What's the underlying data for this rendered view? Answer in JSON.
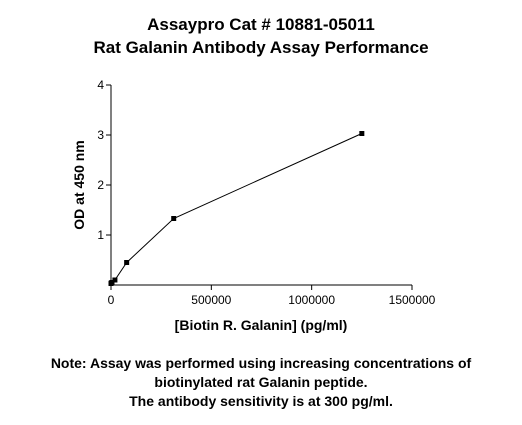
{
  "chart_data": {
    "type": "line",
    "title": [
      "Assaypro Cat # 10881-05011",
      "Rat Galanin Antibody Assay Performance"
    ],
    "xlabel": "[Biotin R. Galanin] (pg/ml)",
    "ylabel": "OD at 450 nm",
    "xlim": [
      0,
      1500000
    ],
    "ylim": [
      0,
      4
    ],
    "xticks": [
      0,
      500000,
      1000000,
      1500000
    ],
    "xtick_labels": [
      "0",
      "500000",
      "1000000",
      "1500000"
    ],
    "yticks": [
      1,
      2,
      3,
      4
    ],
    "ytick_labels": [
      "1",
      "2",
      "3",
      "4"
    ],
    "grid": false,
    "marker": "square",
    "series": [
      {
        "x": [
          0,
          1200,
          4900,
          19500,
          78000,
          312500,
          1250000
        ],
        "y": [
          0.03,
          0.04,
          0.05,
          0.1,
          0.45,
          1.33,
          3.03
        ],
        "color": "#000000"
      }
    ],
    "notes": [
      "Note: Assay was performed using increasing concentrations of",
      "biotinylated rat Galanin peptide.",
      "The antibody sensitivity is at 300 pg/ml."
    ]
  }
}
